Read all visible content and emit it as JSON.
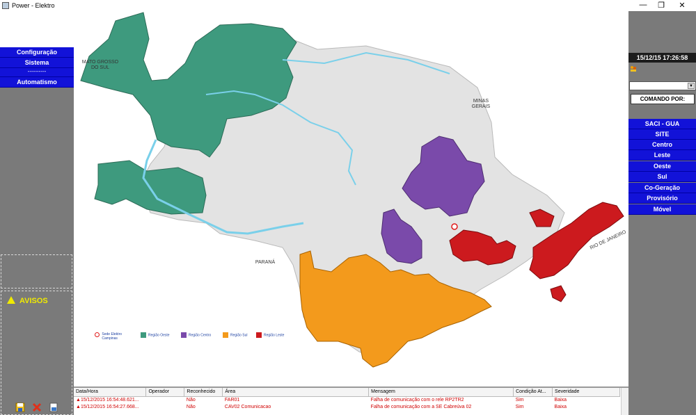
{
  "window": {
    "title": "Power - Elektro",
    "min_glyph": "—",
    "restore_glyph": "❐",
    "close_glyph": "✕"
  },
  "left_menu": {
    "items": [
      "Configuração",
      "Sistema",
      "----------",
      "Automatismo"
    ]
  },
  "avisos": {
    "title": "AVISOS"
  },
  "map": {
    "labels": {
      "mato_grosso": "MATO GROSSO\nDO SUL",
      "minas": "MINAS\nGERAIS",
      "parana": "PARANÁ",
      "rio": "RIO DE JANEIRO"
    },
    "legend": {
      "sede": "Sede Elektro\nCampinas",
      "oeste": "Região Oeste",
      "centro": "Região Centro",
      "sul": "Região Sul",
      "leste": "Região Leste"
    },
    "colors": {
      "oeste": "#3e9a7e",
      "centro": "#7a4aaa",
      "sul": "#f39a1c",
      "leste": "#cc1a1e",
      "other": "#e3e3e3",
      "river": "#7ad0ea"
    }
  },
  "right_panel": {
    "clock": "15/12/15 17:26:58",
    "comando_por": "COMANDO POR:",
    "buttons": [
      "SACI - GUA",
      "SITE",
      "Centro",
      "Leste",
      "Oeste",
      "Sul",
      "Co-Geração",
      "Provisório",
      "Móvel"
    ]
  },
  "events": {
    "columns": [
      "Data/Hora",
      "Operador",
      "Reconhecido",
      "Área",
      "Mensagem",
      "Condição At...",
      "Severidade"
    ],
    "rows": [
      [
        "15/12/2015 16:54:48.621...",
        "",
        "Não",
        "FAR01",
        "Falha de comunicação com o rele RP2TR2",
        "Sim",
        "Baixa"
      ],
      [
        "15/12/2015 16:54:27.668...",
        "",
        "Não",
        "CAV02 Comunicacao",
        "Falha de comunicação com a SE Cabreúva 02",
        "Sim",
        "Baixa"
      ]
    ]
  }
}
